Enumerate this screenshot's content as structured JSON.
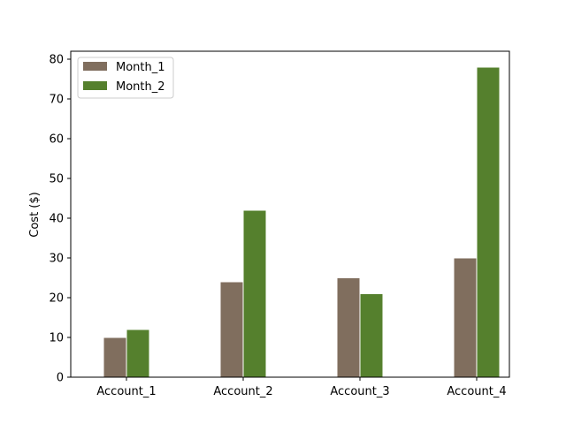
{
  "chart_data": {
    "type": "bar",
    "categories": [
      "Account_1",
      "Account_2",
      "Account_3",
      "Account_4"
    ],
    "series": [
      {
        "name": "Month_1",
        "values": [
          10,
          24,
          25,
          30
        ],
        "color": "#806e5e"
      },
      {
        "name": "Month_2",
        "values": [
          12,
          42,
          21,
          78
        ],
        "color": "#55802d"
      }
    ],
    "title": "",
    "xlabel": "",
    "ylabel": "Cost ($)",
    "ylim": [
      0,
      82
    ],
    "yticks": [
      0,
      10,
      20,
      30,
      40,
      50,
      60,
      70,
      80
    ],
    "grid": false,
    "legend_position": "top-left"
  }
}
